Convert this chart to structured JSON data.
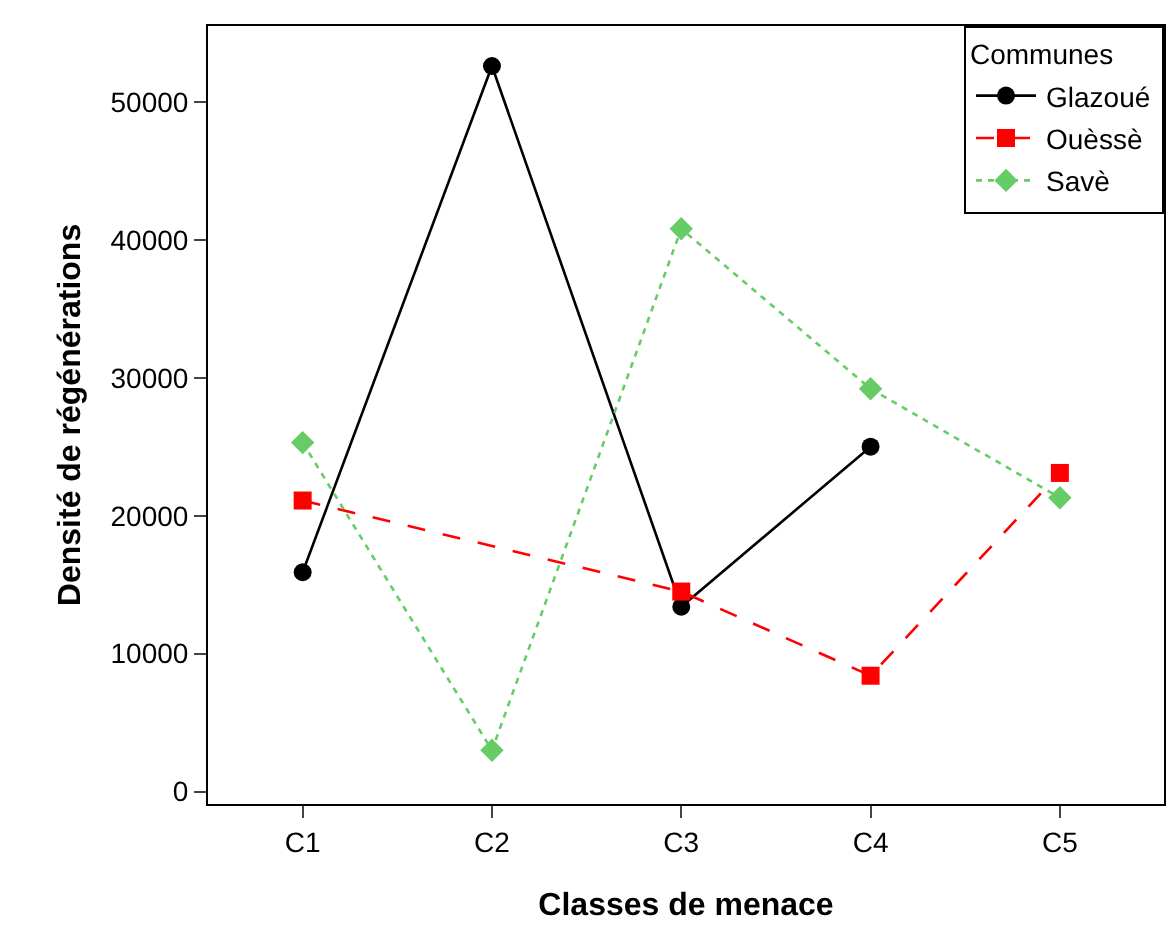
{
  "chart_data": {
    "type": "line",
    "xlabel": "Classes de menace",
    "ylabel": "Densité de régénérations",
    "legend_title": "Communes",
    "categories": [
      "C1",
      "C2",
      "C3",
      "C4",
      "C5"
    ],
    "series": [
      {
        "name": "Glazoué",
        "color": "#000000",
        "marker": "circle",
        "line_style": "solid",
        "values": [
          15900,
          52600,
          13400,
          25000,
          null
        ]
      },
      {
        "name": "Ouèssè",
        "color": "#ff0000",
        "marker": "square",
        "line_style": "dashed",
        "values": [
          21100,
          null,
          14500,
          8400,
          23100
        ]
      },
      {
        "name": "Savè",
        "color": "#66cc66",
        "marker": "diamond",
        "line_style": "dotted",
        "values": [
          25300,
          3000,
          40800,
          29200,
          21300
        ]
      }
    ],
    "ylim": [
      -900,
      55500
    ],
    "yticks": [
      0,
      10000,
      20000,
      30000,
      40000,
      50000
    ],
    "grid": false,
    "legend": "top right"
  }
}
